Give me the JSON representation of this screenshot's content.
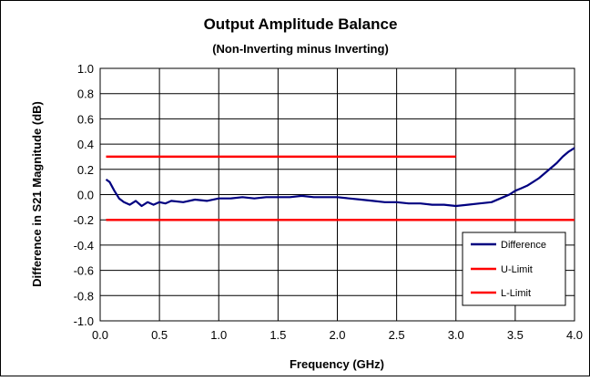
{
  "chart_data": {
    "type": "line",
    "title": "Output Amplitude Balance",
    "subtitle": "(Non-Inverting minus Inverting)",
    "xlabel": "Frequency (GHz)",
    "ylabel": "Difference in S21 Magnitude (dB)",
    "xlim": [
      0.0,
      4.0
    ],
    "ylim": [
      -1.0,
      1.0
    ],
    "x_ticks": [
      "0.0",
      "0.5",
      "1.0",
      "1.5",
      "2.0",
      "2.5",
      "3.0",
      "3.5",
      "4.0"
    ],
    "y_ticks": [
      "1.0",
      "0.8",
      "0.6",
      "0.4",
      "0.2",
      "0.0",
      "-0.2",
      "-0.4",
      "-0.6",
      "-0.8",
      "-1.0"
    ],
    "grid": true,
    "legend_position": "lower-right",
    "series": [
      {
        "name": "Difference",
        "color": "#000080",
        "x": [
          0.05,
          0.08,
          0.12,
          0.16,
          0.2,
          0.25,
          0.3,
          0.35,
          0.4,
          0.45,
          0.5,
          0.55,
          0.6,
          0.7,
          0.8,
          0.9,
          1.0,
          1.1,
          1.2,
          1.3,
          1.4,
          1.5,
          1.6,
          1.7,
          1.8,
          1.9,
          2.0,
          2.1,
          2.2,
          2.3,
          2.4,
          2.5,
          2.6,
          2.7,
          2.8,
          2.9,
          3.0,
          3.1,
          3.2,
          3.3,
          3.4,
          3.45,
          3.5,
          3.55,
          3.6,
          3.65,
          3.7,
          3.75,
          3.8,
          3.85,
          3.9,
          3.95,
          4.0
        ],
        "y": [
          0.12,
          0.1,
          0.03,
          -0.03,
          -0.06,
          -0.08,
          -0.05,
          -0.09,
          -0.06,
          -0.08,
          -0.06,
          -0.07,
          -0.05,
          -0.06,
          -0.04,
          -0.05,
          -0.03,
          -0.03,
          -0.02,
          -0.03,
          -0.02,
          -0.02,
          -0.02,
          -0.01,
          -0.02,
          -0.02,
          -0.02,
          -0.03,
          -0.04,
          -0.05,
          -0.06,
          -0.06,
          -0.07,
          -0.07,
          -0.08,
          -0.08,
          -0.09,
          -0.08,
          -0.07,
          -0.06,
          -0.02,
          0.0,
          0.03,
          0.05,
          0.07,
          0.1,
          0.13,
          0.17,
          0.21,
          0.25,
          0.3,
          0.34,
          0.37
        ]
      },
      {
        "name": "U-Limit",
        "color": "#ff0000",
        "x": [
          0.05,
          3.0
        ],
        "y": [
          0.3,
          0.3
        ]
      },
      {
        "name": "L-Limit",
        "color": "#ff0000",
        "x": [
          0.05,
          4.0
        ],
        "y": [
          -0.2,
          -0.2
        ]
      }
    ]
  }
}
